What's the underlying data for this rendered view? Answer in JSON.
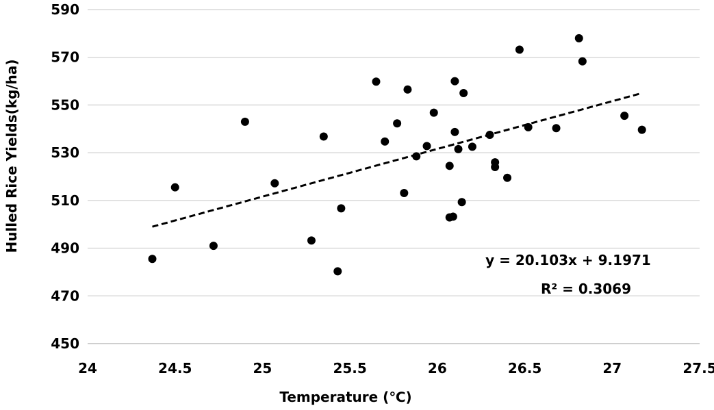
{
  "chart_data": {
    "type": "scatter",
    "xlabel": "Temperature (℃)",
    "ylabel": "Hulled Rice Yields(kg/ha)",
    "xlim": [
      24,
      27.5
    ],
    "ylim": [
      450,
      590
    ],
    "xticks": [
      "24",
      "24.5",
      "25",
      "25.5",
      "26",
      "26.5",
      "27",
      "27.5"
    ],
    "yticks": [
      "450",
      "470",
      "490",
      "510",
      "530",
      "550",
      "570",
      "590"
    ],
    "grid": "horizontal",
    "legend": "none",
    "trendline": {
      "style": "dashed",
      "slope": 20.103,
      "x_range": [
        24.37,
        27.17
      ],
      "y_range": [
        499,
        555
      ]
    },
    "annotations": {
      "equation": "y = 20.103x + 9.1971",
      "r_squared": "R² = 0.3069"
    },
    "series": [
      {
        "points": [
          [
            24.37,
            485.5
          ],
          [
            24.5,
            515.5
          ],
          [
            24.72,
            491
          ],
          [
            24.9,
            543
          ],
          [
            25.07,
            517.2
          ],
          [
            25.28,
            493.2
          ],
          [
            25.35,
            536.8
          ],
          [
            25.43,
            480.3
          ],
          [
            25.45,
            506.7
          ],
          [
            25.65,
            559.8
          ],
          [
            25.7,
            534.7
          ],
          [
            25.77,
            542.3
          ],
          [
            25.81,
            513.1
          ],
          [
            25.83,
            556.5
          ],
          [
            25.88,
            528.5
          ],
          [
            25.94,
            532.8
          ],
          [
            25.98,
            546.8
          ],
          [
            26.07,
            524.5
          ],
          [
            26.07,
            502.9
          ],
          [
            26.09,
            503.2
          ],
          [
            26.1,
            538.7
          ],
          [
            26.1,
            560
          ],
          [
            26.12,
            531.5
          ],
          [
            26.14,
            509.3
          ],
          [
            26.15,
            555
          ],
          [
            26.2,
            532.5
          ],
          [
            26.3,
            537.5
          ],
          [
            26.33,
            526
          ],
          [
            26.33,
            524
          ],
          [
            26.4,
            519.5
          ],
          [
            26.47,
            573.2
          ],
          [
            26.52,
            540.7
          ],
          [
            26.68,
            540.3
          ],
          [
            26.81,
            578
          ],
          [
            26.83,
            568.3
          ],
          [
            27.07,
            545.5
          ],
          [
            27.17,
            539.6
          ]
        ]
      }
    ],
    "colors": {
      "points": "#000000",
      "grid": "#d9d9d9",
      "axis": "#bfbfbf"
    }
  }
}
